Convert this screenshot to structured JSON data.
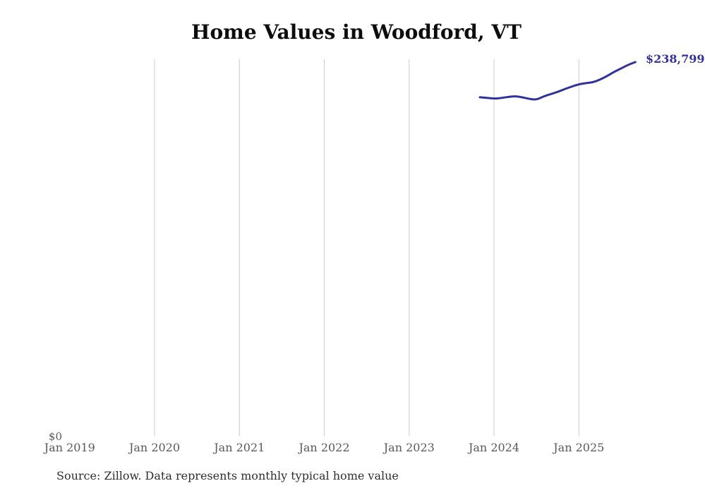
{
  "chart_data": {
    "type": "line",
    "title": "Home Values in Woodford, VT",
    "source_note": "Source: Zillow. Data represents monthly typical home value",
    "y_zero_label": "$0",
    "end_label": "$238,799",
    "legend": "none",
    "grid": "vertical-only",
    "ylim": [
      0,
      245000
    ],
    "x_ticks": [
      "Jan 2019",
      "Jan 2020",
      "Jan 2021",
      "Jan 2022",
      "Jan 2023",
      "Jan 2024",
      "Jan 2025"
    ],
    "x_gridlines": [
      "Jan 2020",
      "Jan 2021",
      "Jan 2022",
      "Jan 2023",
      "Jan 2024",
      "Jan 2025"
    ],
    "x": [
      "Nov 2023",
      "Dec 2023",
      "Jan 2024",
      "Feb 2024",
      "Mar 2024",
      "Apr 2024",
      "May 2024",
      "Jun 2024",
      "Jul 2024",
      "Aug 2024",
      "Sep 2024",
      "Oct 2024",
      "Nov 2024",
      "Dec 2024",
      "Jan 2025",
      "Feb 2025",
      "Mar 2025",
      "Apr 2025",
      "May 2025",
      "Jun 2025",
      "Jul 2025",
      "Aug 2025",
      "Sep 2025"
    ],
    "series": [
      {
        "name": "Typical home value",
        "values": [
          216400,
          216000,
          215500,
          215900,
          216600,
          217100,
          216400,
          215300,
          214800,
          216900,
          218400,
          219800,
          221600,
          223200,
          224700,
          225400,
          225900,
          227600,
          229900,
          232600,
          234800,
          237100,
          238799
        ]
      }
    ],
    "colors": {
      "line": "#32329b",
      "end_label_text": "#32329b",
      "gridline": "#cccccc",
      "tick_text": "#595959",
      "title_text": "#0d0d0d",
      "source_text": "#2e2e2e"
    }
  }
}
